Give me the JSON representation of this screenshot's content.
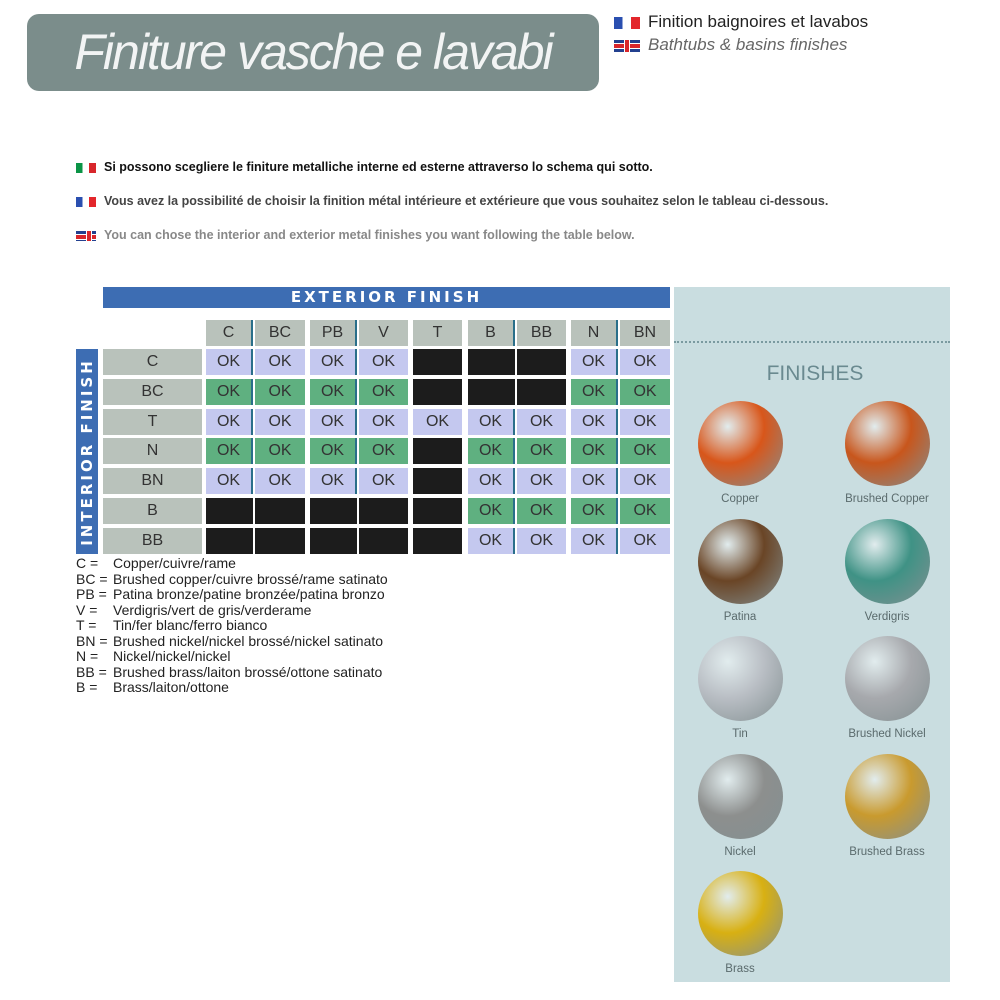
{
  "header": {
    "title": "Finiture vasche e lavabi",
    "subtitle_fr": "Finition baignoires et lavabos",
    "subtitle_en": "Bathtubs & basins finishes"
  },
  "intro": {
    "it": "Si possono scegliere le finiture metalliche interne ed esterne attraverso lo schema qui sotto.",
    "fr": "Vous avez la possibilité de choisir la finition métal intérieure et extérieure que vous souhaitez selon le tableau ci-dessous.",
    "en": "You can chose the interior and exterior metal finishes you want following the table below."
  },
  "table": {
    "exterior_label": "EXTERIOR FINISH",
    "interior_label": "INTERIOR FINISH",
    "columns": [
      "C",
      "BC",
      "PB",
      "V",
      "T",
      "B",
      "BB",
      "N",
      "BN"
    ],
    "rows": [
      {
        "label": "C",
        "cells": [
          "OK",
          "OK",
          "OK",
          "OK",
          "",
          "",
          "",
          "OK",
          "OK"
        ]
      },
      {
        "label": "BC",
        "cells": [
          "OK",
          "OK",
          "OK",
          "OK",
          "",
          "",
          "",
          "OK",
          "OK"
        ]
      },
      {
        "label": "T",
        "cells": [
          "OK",
          "OK",
          "OK",
          "OK",
          "OK",
          "OK",
          "OK",
          "OK",
          "OK"
        ]
      },
      {
        "label": "N",
        "cells": [
          "OK",
          "OK",
          "OK",
          "OK",
          "",
          "OK",
          "OK",
          "OK",
          "OK"
        ]
      },
      {
        "label": "BN",
        "cells": [
          "OK",
          "OK",
          "OK",
          "OK",
          "",
          "OK",
          "OK",
          "OK",
          "OK"
        ]
      },
      {
        "label": "B",
        "cells": [
          "",
          "",
          "",
          "",
          "",
          "OK",
          "OK",
          "OK",
          "OK"
        ]
      },
      {
        "label": "BB",
        "cells": [
          "",
          "",
          "",
          "",
          "",
          "OK",
          "OK",
          "OK",
          "OK"
        ]
      }
    ],
    "colors": {
      "header": "#3d6db3",
      "label": "#b9c2bb",
      "ok_light": "#c4c8ef",
      "ok_green": "#5fb080",
      "not_available": "#1c1c1c"
    }
  },
  "legend": [
    {
      "code": "C =",
      "text": "Copper/cuivre/rame"
    },
    {
      "code": "BC =",
      "text": "Brushed copper/cuivre brossé/rame satinato"
    },
    {
      "code": "PB =",
      "text": "Patina bronze/patine bronzée/patina bronzo"
    },
    {
      "code": "V =",
      "text": "Verdigris/vert de gris/verderame"
    },
    {
      "code": "T =",
      "text": "Tin/fer blanc/ferro bianco"
    },
    {
      "code": "BN =",
      "text": "Brushed nickel/nickel brossé/nickel satinato"
    },
    {
      "code": "N =",
      "text": "Nickel/nickel/nickel"
    },
    {
      "code": "BB =",
      "text": "Brushed brass/laiton brossé/ottone satinato"
    },
    {
      "code": "B =",
      "text": "Brass/laiton/ottone"
    }
  ],
  "finishes": {
    "title": "FINISHES",
    "items": [
      {
        "name": "Copper",
        "color": "#d8561a"
      },
      {
        "name": "Brushed Copper",
        "color": "#c8561c"
      },
      {
        "name": "Patina",
        "color": "#6a4526"
      },
      {
        "name": "Verdigris",
        "color": "#3f9285"
      },
      {
        "name": "Tin",
        "color": "#b9bec4"
      },
      {
        "name": "Brushed Nickel",
        "color": "#a7a9ad"
      },
      {
        "name": "Nickel",
        "color": "#8d8f8e"
      },
      {
        "name": "Brushed Brass",
        "color": "#c99a2e"
      },
      {
        "name": "Brass",
        "color": "#d8b012"
      }
    ]
  }
}
